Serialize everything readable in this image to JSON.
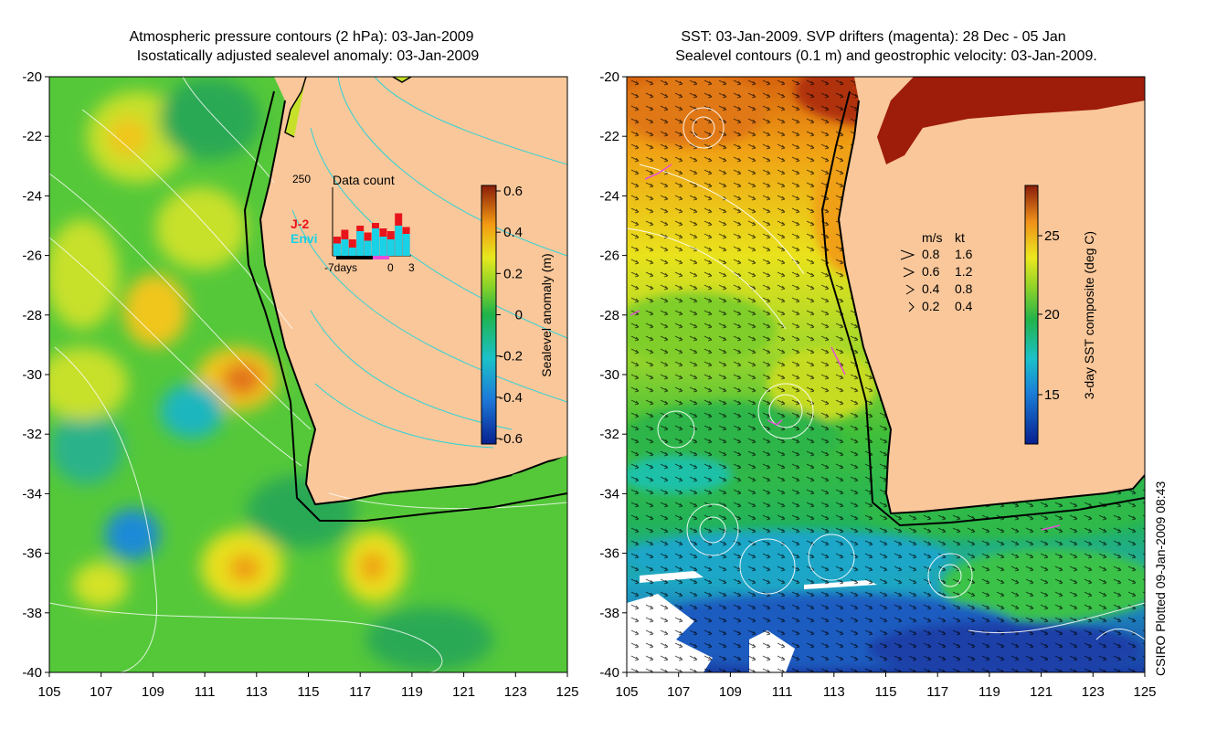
{
  "left_panel": {
    "title_line1": "Atmospheric pressure contours (2 hPa): 03-Jan-2009",
    "title_line2": "Isostatically adjusted sealevel anomaly: 03-Jan-2009",
    "y_ticks": [
      "-20",
      "-22",
      "-24",
      "-26",
      "-28",
      "-30",
      "-32",
      "-34",
      "-36",
      "-38",
      "-40"
    ],
    "x_ticks": [
      "105",
      "107",
      "109",
      "111",
      "113",
      "115",
      "117",
      "119",
      "121",
      "123",
      "125"
    ],
    "colorbar": {
      "label": "Sealevel anomaly (m)",
      "ticks": [
        "0.6",
        "0.4",
        "0.2",
        "0",
        "-0.2",
        "-0.4",
        "-0.6"
      ]
    },
    "inset": {
      "count_label": "250",
      "title": "Data count",
      "series1_label": "J-2",
      "series2_label": "Envi",
      "x_label_left": "-7days",
      "x_label_mid": "0",
      "x_label_right": "3",
      "series1_color": "#e8141c",
      "series2_color": "#19d2e6",
      "j2_values": [
        70,
        95,
        60,
        110,
        85,
        120,
        100,
        90,
        155,
        105
      ],
      "envi_values": [
        45,
        60,
        30,
        90,
        55,
        100,
        70,
        60,
        110,
        80
      ]
    }
  },
  "right_panel": {
    "title_line1": "SST: 03-Jan-2009. SVP drifters (magenta): 28 Dec - 05 Jan",
    "title_line2": "Sealevel contours (0.1 m) and geostrophic velocity: 03-Jan-2009.",
    "y_ticks": [
      "-20",
      "-22",
      "-24",
      "-26",
      "-28",
      "-30",
      "-32",
      "-34",
      "-36",
      "-38",
      "-40"
    ],
    "x_ticks": [
      "105",
      "107",
      "109",
      "111",
      "113",
      "115",
      "117",
      "119",
      "121",
      "123",
      "125"
    ],
    "colorbar": {
      "label": "3-day SST composite (deg C)",
      "ticks": [
        "25",
        "20",
        "15"
      ]
    },
    "legend": {
      "header_ms": "m/s",
      "header_kt": "kt",
      "rows": [
        {
          "ms": "0.8",
          "kt": "1.6"
        },
        {
          "ms": "0.6",
          "kt": "1.2"
        },
        {
          "ms": "0.4",
          "kt": "0.8"
        },
        {
          "ms": "0.2",
          "kt": "0.4"
        }
      ]
    }
  },
  "footer": {
    "plotted": "CSIRO Plotted 09-Jan-2009 08:43"
  },
  "colors": {
    "land": "#f9c79a",
    "coast": "#000000",
    "contour_cyan": "#2ed3d6"
  }
}
